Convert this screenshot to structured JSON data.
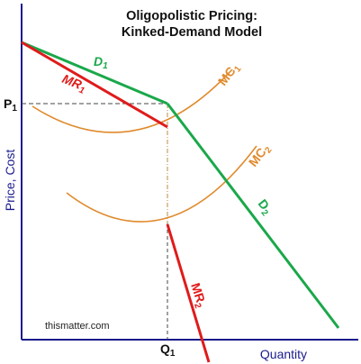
{
  "title": {
    "line1": "Oligopolistic Pricing:",
    "line2": "Kinked-Demand Model"
  },
  "axes": {
    "y_label": "Price, Cost",
    "x_label": "Quantity",
    "price_tick": {
      "main": "P",
      "sub": "1"
    },
    "quantity_tick": {
      "main": "Q",
      "sub": "1"
    }
  },
  "curves": {
    "d1": {
      "main": "D",
      "sub": "1"
    },
    "d2": {
      "main": "D",
      "sub": "2"
    },
    "mr1": {
      "main": "MR",
      "sub": "1"
    },
    "mr2": {
      "main": "MR",
      "sub": "2"
    },
    "mc1": {
      "main": "MC",
      "sub": "1"
    },
    "mc2": {
      "main": "MC",
      "sub": "2"
    }
  },
  "credit": "thismatter.com",
  "colors": {
    "demand": "#1aa84a",
    "marginal_revenue": "#e01b1b",
    "marginal_cost": "#e08a2c",
    "axis": "#1a1a8c",
    "guide": "#444444"
  }
}
